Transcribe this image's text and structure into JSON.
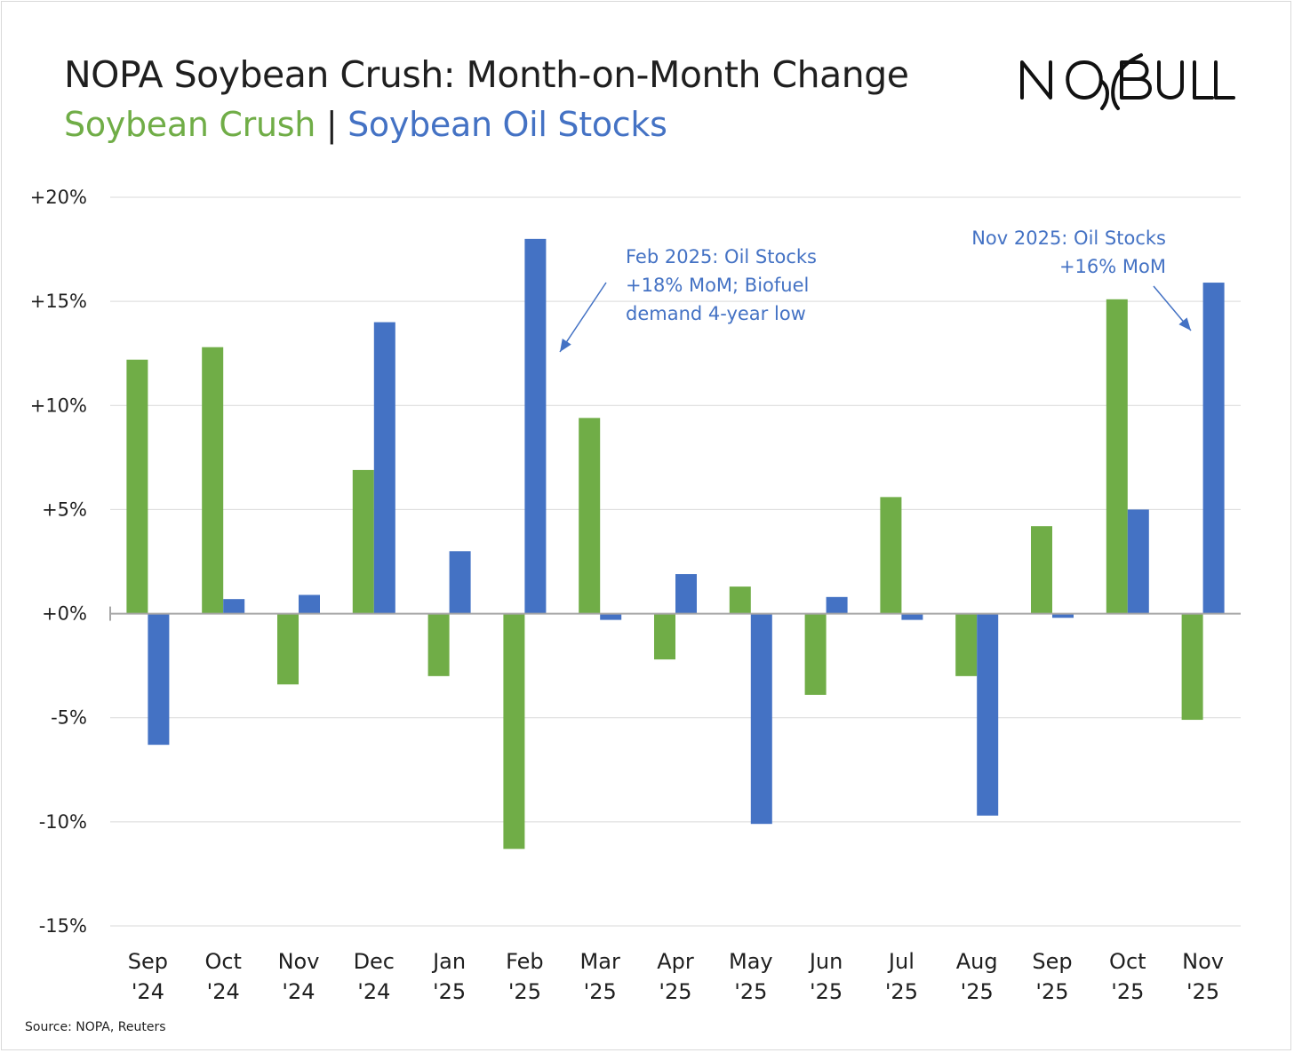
{
  "title": "NOPA Soybean Crush: Month-on-Month Change",
  "legend": {
    "series1": "Soybean Crush",
    "separator": "|",
    "series2": "Soybean Oil Stocks"
  },
  "logo_text": "NO BULL",
  "source": "Source: NOPA, Reuters",
  "colors": {
    "crush": "#70ad47",
    "oil": "#4472c4",
    "grid": "#d9d9d9",
    "zero": "#a6a6a6"
  },
  "chart_data": {
    "type": "bar",
    "title": "NOPA Soybean Crush: Month-on-Month Change",
    "xlabel": "",
    "ylabel": "",
    "ylim": [
      -15,
      20
    ],
    "yticks": [
      20,
      15,
      10,
      5,
      0,
      -5,
      -10,
      -15
    ],
    "ytick_labels": [
      "+20%",
      "+15%",
      "+10%",
      "+5%",
      "+0%",
      "-5%",
      "-10%",
      "-15%"
    ],
    "grid": true,
    "categories": [
      [
        "Sep",
        "'24"
      ],
      [
        "Oct",
        "'24"
      ],
      [
        "Nov",
        "'24"
      ],
      [
        "Dec",
        "'24"
      ],
      [
        "Jan",
        "'25"
      ],
      [
        "Feb",
        "'25"
      ],
      [
        "Mar",
        "'25"
      ],
      [
        "Apr",
        "'25"
      ],
      [
        "May",
        "'25"
      ],
      [
        "Jun",
        "'25"
      ],
      [
        "Jul",
        "'25"
      ],
      [
        "Aug",
        "'25"
      ],
      [
        "Sep",
        "'25"
      ],
      [
        "Oct",
        "'25"
      ],
      [
        "Nov",
        "'25"
      ]
    ],
    "series": [
      {
        "name": "Soybean Crush",
        "color": "#70ad47",
        "values": [
          12.2,
          12.8,
          -3.4,
          6.9,
          -3.0,
          -11.3,
          9.4,
          -2.2,
          1.3,
          -3.9,
          5.6,
          -3.0,
          4.2,
          15.1,
          -5.1
        ]
      },
      {
        "name": "Soybean Oil Stocks",
        "color": "#4472c4",
        "values": [
          -6.3,
          0.7,
          0.9,
          14.0,
          3.0,
          18.0,
          -0.3,
          1.9,
          -10.1,
          0.8,
          -0.3,
          -9.7,
          -0.2,
          5.0,
          15.9
        ]
      }
    ],
    "annotations": [
      {
        "lines": [
          "Feb 2025: Oil Stocks",
          "+18% MoM; Biofuel",
          "demand 4-year low"
        ],
        "align": "left"
      },
      {
        "lines": [
          "Nov 2025: Oil Stocks",
          "+16% MoM"
        ],
        "align": "right"
      }
    ]
  }
}
